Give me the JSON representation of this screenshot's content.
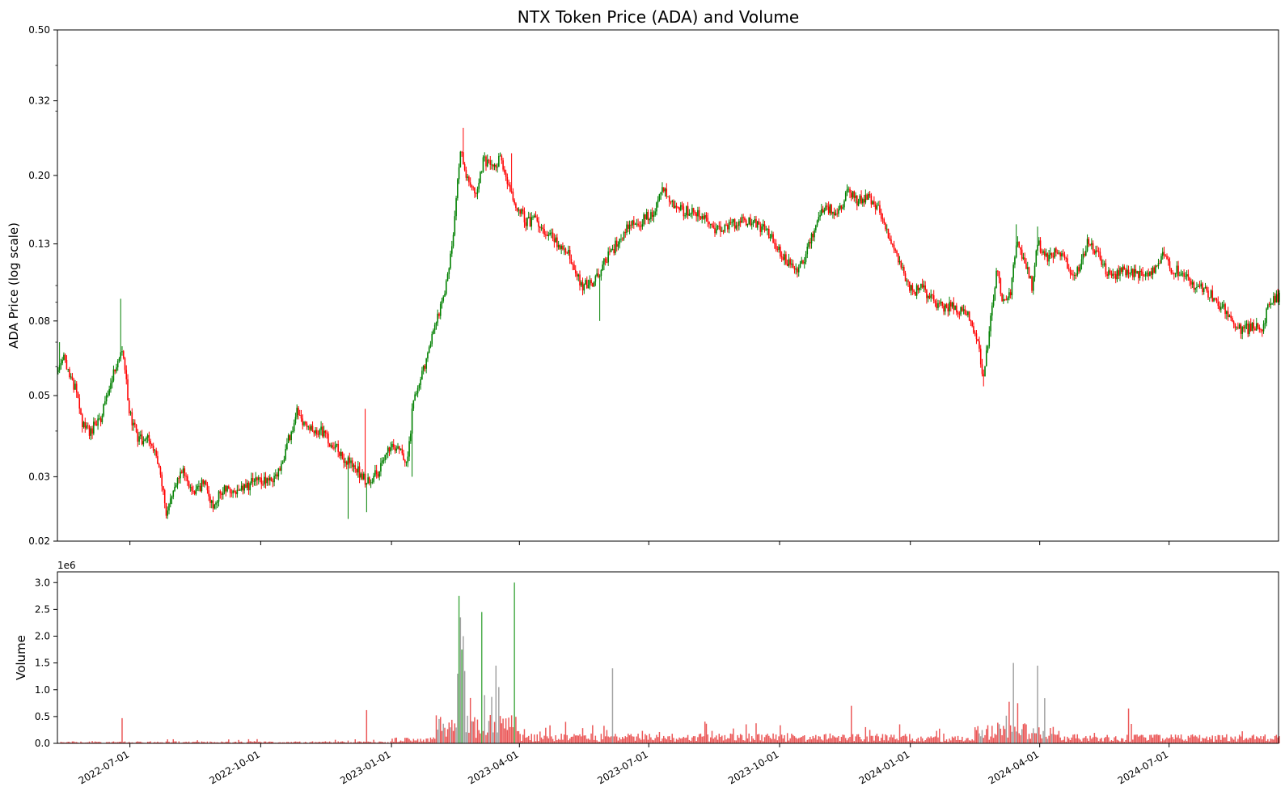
{
  "chart_data": [
    {
      "type": "candlestick",
      "title": "NTX Token Price (ADA) and Volume",
      "ylabel": "ADA Price (log scale)",
      "yscale": "log",
      "ylim": [
        0.02,
        0.5
      ],
      "yticks": [
        0.02,
        0.03,
        0.05,
        0.08,
        0.13,
        0.2,
        0.32,
        0.5
      ],
      "ytick_labels": [
        "0.02",
        "0.03",
        "0.05",
        "0.08",
        "0.13",
        "0.20",
        "0.32",
        "0.50"
      ],
      "xlim": [
        "2022-05-11",
        "2024-09-16"
      ],
      "xticks": [
        "2022-07-01",
        "2022-10-01",
        "2023-01-01",
        "2023-04-01",
        "2023-07-01",
        "2023-10-01",
        "2024-01-01",
        "2024-04-01",
        "2024-07-01"
      ],
      "up_color": "#008000",
      "down_color": "#ff0000",
      "grid": false,
      "series": [
        {
          "anchors": [
            [
              "2022-05-11",
              0.058
            ],
            [
              "2022-05-15",
              0.063
            ],
            [
              "2022-05-20",
              0.055
            ],
            [
              "2022-05-24",
              0.052
            ],
            [
              "2022-05-28",
              0.042
            ],
            [
              "2022-06-02",
              0.04
            ],
            [
              "2022-06-10",
              0.043
            ],
            [
              "2022-06-16",
              0.052
            ],
            [
              "2022-06-22",
              0.063
            ],
            [
              "2022-06-26",
              0.065
            ],
            [
              "2022-06-30",
              0.045
            ],
            [
              "2022-07-06",
              0.038
            ],
            [
              "2022-07-14",
              0.038
            ],
            [
              "2022-07-20",
              0.033
            ],
            [
              "2022-07-26",
              0.024
            ],
            [
              "2022-08-01",
              0.029
            ],
            [
              "2022-08-08",
              0.031
            ],
            [
              "2022-08-14",
              0.027
            ],
            [
              "2022-08-22",
              0.029
            ],
            [
              "2022-08-28",
              0.025
            ],
            [
              "2022-09-04",
              0.028
            ],
            [
              "2022-09-15",
              0.027
            ],
            [
              "2022-09-25",
              0.029
            ],
            [
              "2022-10-08",
              0.029
            ],
            [
              "2022-10-14",
              0.031
            ],
            [
              "2022-10-20",
              0.038
            ],
            [
              "2022-10-26",
              0.045
            ],
            [
              "2022-11-02",
              0.04
            ],
            [
              "2022-11-12",
              0.04
            ],
            [
              "2022-11-22",
              0.036
            ],
            [
              "2022-11-30",
              0.033
            ],
            [
              "2022-12-08",
              0.031
            ],
            [
              "2022-12-14",
              0.029
            ],
            [
              "2022-12-22",
              0.031
            ],
            [
              "2022-12-30",
              0.036
            ],
            [
              "2023-01-06",
              0.035
            ],
            [
              "2023-01-12",
              0.033
            ],
            [
              "2023-01-16",
              0.05
            ],
            [
              "2023-01-24",
              0.06
            ],
            [
              "2023-02-01",
              0.08
            ],
            [
              "2023-02-08",
              0.1
            ],
            [
              "2023-02-14",
              0.15
            ],
            [
              "2023-02-18",
              0.24
            ],
            [
              "2023-02-22",
              0.2
            ],
            [
              "2023-03-01",
              0.18
            ],
            [
              "2023-03-06",
              0.22
            ],
            [
              "2023-03-12",
              0.21
            ],
            [
              "2023-03-18",
              0.22
            ],
            [
              "2023-03-25",
              0.18
            ],
            [
              "2023-04-05",
              0.15
            ],
            [
              "2023-04-12",
              0.15
            ],
            [
              "2023-04-20",
              0.14
            ],
            [
              "2023-04-28",
              0.13
            ],
            [
              "2023-05-06",
              0.12
            ],
            [
              "2023-05-14",
              0.1
            ],
            [
              "2023-05-22",
              0.1
            ],
            [
              "2023-05-30",
              0.115
            ],
            [
              "2023-06-08",
              0.13
            ],
            [
              "2023-06-16",
              0.145
            ],
            [
              "2023-06-26",
              0.15
            ],
            [
              "2023-07-04",
              0.16
            ],
            [
              "2023-07-10",
              0.185
            ],
            [
              "2023-07-16",
              0.17
            ],
            [
              "2023-07-24",
              0.16
            ],
            [
              "2023-08-01",
              0.16
            ],
            [
              "2023-08-08",
              0.155
            ],
            [
              "2023-08-16",
              0.14
            ],
            [
              "2023-08-24",
              0.145
            ],
            [
              "2023-09-04",
              0.15
            ],
            [
              "2023-09-14",
              0.148
            ],
            [
              "2023-09-22",
              0.14
            ],
            [
              "2023-09-30",
              0.125
            ],
            [
              "2023-10-06",
              0.115
            ],
            [
              "2023-10-12",
              0.11
            ],
            [
              "2023-10-18",
              0.12
            ],
            [
              "2023-10-25",
              0.14
            ],
            [
              "2023-11-01",
              0.165
            ],
            [
              "2023-11-10",
              0.158
            ],
            [
              "2023-11-18",
              0.18
            ],
            [
              "2023-11-24",
              0.17
            ],
            [
              "2023-12-02",
              0.175
            ],
            [
              "2023-12-10",
              0.16
            ],
            [
              "2023-12-18",
              0.13
            ],
            [
              "2023-12-26",
              0.11
            ],
            [
              "2024-01-02",
              0.095
            ],
            [
              "2024-01-08",
              0.1
            ],
            [
              "2024-01-14",
              0.092
            ],
            [
              "2024-01-22",
              0.088
            ],
            [
              "2024-02-01",
              0.087
            ],
            [
              "2024-02-10",
              0.083
            ],
            [
              "2024-02-17",
              0.072
            ],
            [
              "2024-02-21",
              0.055
            ],
            [
              "2024-02-25",
              0.075
            ],
            [
              "2024-03-01",
              0.11
            ],
            [
              "2024-03-06",
              0.09
            ],
            [
              "2024-03-11",
              0.095
            ],
            [
              "2024-03-15",
              0.13
            ],
            [
              "2024-03-20",
              0.12
            ],
            [
              "2024-03-26",
              0.1
            ],
            [
              "2024-03-30",
              0.13
            ],
            [
              "2024-04-06",
              0.12
            ],
            [
              "2024-04-14",
              0.125
            ],
            [
              "2024-04-22",
              0.11
            ],
            [
              "2024-04-28",
              0.11
            ],
            [
              "2024-05-04",
              0.13
            ],
            [
              "2024-05-12",
              0.12
            ],
            [
              "2024-05-20",
              0.105
            ],
            [
              "2024-05-28",
              0.11
            ],
            [
              "2024-06-06",
              0.108
            ],
            [
              "2024-06-14",
              0.105
            ],
            [
              "2024-06-22",
              0.112
            ],
            [
              "2024-06-26",
              0.125
            ],
            [
              "2024-07-02",
              0.11
            ],
            [
              "2024-07-10",
              0.11
            ],
            [
              "2024-07-18",
              0.1
            ],
            [
              "2024-07-26",
              0.097
            ],
            [
              "2024-08-04",
              0.09
            ],
            [
              "2024-08-12",
              0.082
            ],
            [
              "2024-08-20",
              0.075
            ],
            [
              "2024-08-28",
              0.077
            ],
            [
              "2024-09-04",
              0.076
            ],
            [
              "2024-09-10",
              0.092
            ],
            [
              "2024-09-16",
              0.093
            ]
          ],
          "wicks": [
            [
              "2022-05-12",
              0.07
            ],
            [
              "2022-06-24",
              0.092
            ],
            [
              "2022-07-27",
              0.023
            ],
            [
              "2022-12-01",
              0.023
            ],
            [
              "2022-12-13",
              0.046
            ],
            [
              "2022-12-14",
              0.024
            ],
            [
              "2023-01-15",
              0.03
            ],
            [
              "2023-02-20",
              0.27
            ],
            [
              "2023-03-26",
              0.23
            ],
            [
              "2023-05-27",
              0.08
            ],
            [
              "2024-02-21",
              0.053
            ],
            [
              "2024-03-15",
              0.147
            ],
            [
              "2024-03-30",
              0.145
            ]
          ]
        }
      ]
    },
    {
      "type": "bar",
      "ylabel": "Volume",
      "ylim": [
        0,
        3200000
      ],
      "yticks": [
        0,
        500000,
        1000000,
        1500000,
        2000000,
        2500000,
        3000000
      ],
      "ytick_labels": [
        "0.0",
        "0.5",
        "1.0",
        "1.5",
        "2.0",
        "2.5",
        "3.0"
      ],
      "offset_text": "1e6",
      "xtick_labels": [
        "2022-07-01",
        "2022-10-01",
        "2023-01-01",
        "2023-04-01",
        "2023-07-01",
        "2023-10-01",
        "2024-01-01",
        "2024-04-01",
        "2024-07-01"
      ],
      "down_color": "#e8393a",
      "up_color": "#2a9d2a",
      "neutral_color": "#909090",
      "series": [
        {
          "segments": [
            [
              "2022-05-11",
              "2022-12-31",
              25000
            ],
            [
              "2023-01-01",
              "2023-01-31",
              70000
            ],
            [
              "2023-02-01",
              "2023-03-31",
              350000
            ],
            [
              "2023-04-01",
              "2023-12-31",
              120000
            ],
            [
              "2024-01-01",
              "2024-02-14",
              90000
            ],
            [
              "2024-02-15",
              "2024-04-10",
              250000
            ],
            [
              "2024-04-11",
              "2024-09-16",
              110000
            ]
          ],
          "spikes": [
            [
              "2022-06-25",
              470000,
              "down"
            ],
            [
              "2022-12-14",
              620000,
              "down"
            ],
            [
              "2023-02-16",
              1300000,
              "neutral"
            ],
            [
              "2023-02-17",
              2750000,
              "up"
            ],
            [
              "2023-02-18",
              2350000,
              "neutral"
            ],
            [
              "2023-02-19",
              1750000,
              "up"
            ],
            [
              "2023-02-20",
              2000000,
              "neutral"
            ],
            [
              "2023-02-21",
              1350000,
              "neutral"
            ],
            [
              "2023-03-05",
              2450000,
              "up"
            ],
            [
              "2023-03-07",
              900000,
              "neutral"
            ],
            [
              "2023-03-15",
              1450000,
              "neutral"
            ],
            [
              "2023-03-17",
              1050000,
              "neutral"
            ],
            [
              "2023-03-28",
              3000000,
              "up"
            ],
            [
              "2023-06-05",
              1400000,
              "neutral"
            ],
            [
              "2023-11-20",
              700000,
              "down"
            ],
            [
              "2024-03-13",
              1500000,
              "neutral"
            ],
            [
              "2024-03-30",
              1450000,
              "neutral"
            ],
            [
              "2024-03-16",
              750000,
              "down"
            ],
            [
              "2024-06-02",
              650000,
              "down"
            ]
          ]
        }
      ]
    }
  ]
}
